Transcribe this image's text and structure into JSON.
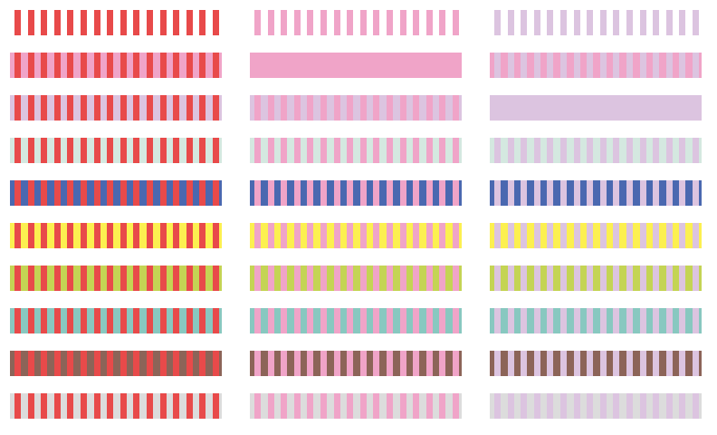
{
  "stripe_colors": [
    "#e84a4a",
    "#f0a4c8",
    "#dcc4e0"
  ],
  "background_colors": [
    "#ffffff",
    "#f0a4c8",
    "#dcc4e0",
    "#d4e8e0",
    "#4a68b0",
    "#fcf050",
    "#c4d454",
    "#88c8c0",
    "#8c6458",
    "#dcdcdc"
  ],
  "stripes_per_swatch": 16
}
